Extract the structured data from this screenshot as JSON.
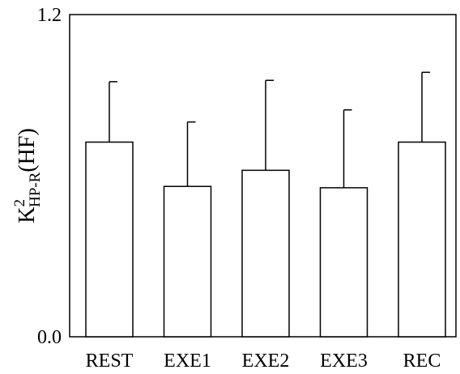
{
  "chart_data": {
    "type": "bar",
    "categories": [
      "REST",
      "EXE1",
      "EXE2",
      "EXE3",
      "REC"
    ],
    "values": [
      0.725,
      0.56,
      0.62,
      0.555,
      0.725
    ],
    "error_upper": [
      0.95,
      0.8,
      0.955,
      0.845,
      0.985
    ],
    "ylabel": {
      "base": "K",
      "superscript": "2",
      "subscript": "HP-R",
      "suffix": "(HF)"
    },
    "y_ticks": [
      "0.0",
      "1.2"
    ],
    "ylim": [
      0,
      1.2
    ],
    "grid": false,
    "bar_fill": "#ffffff",
    "bar_stroke": "#000000"
  }
}
